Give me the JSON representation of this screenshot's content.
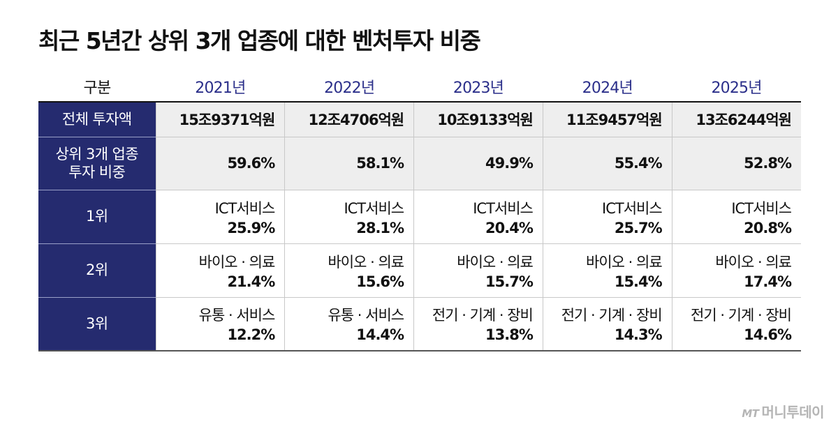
{
  "title": "최근 5년간 상위 3개 업종에 대한 벤처투자 비중",
  "chart_data": {
    "type": "table",
    "title": "최근 5년간 상위 3개 업종에 대한 벤처투자 비중",
    "header": {
      "label": "구분",
      "years": [
        "2021년",
        "2022년",
        "2023년",
        "2024년",
        "2025년"
      ]
    },
    "total_row": {
      "label": "전체 투자액",
      "values": [
        "15조9371억원",
        "12조4706억원",
        "10조9133억원",
        "11조9457억원",
        "13조6244억원"
      ]
    },
    "share_row": {
      "label_line1": "상위 3개 업종",
      "label_line2": "투자 비중",
      "values": [
        "59.6%",
        "58.1%",
        "49.9%",
        "55.4%",
        "52.8%"
      ]
    },
    "ranks": [
      {
        "label": "1위",
        "cells": [
          {
            "industry": "ICT서비스",
            "pct": "25.9%"
          },
          {
            "industry": "ICT서비스",
            "pct": "28.1%"
          },
          {
            "industry": "ICT서비스",
            "pct": "20.4%"
          },
          {
            "industry": "ICT서비스",
            "pct": "25.7%"
          },
          {
            "industry": "ICT서비스",
            "pct": "20.8%"
          }
        ]
      },
      {
        "label": "2위",
        "cells": [
          {
            "industry": "바이오 · 의료",
            "pct": "21.4%"
          },
          {
            "industry": "바이오 · 의료",
            "pct": "15.6%"
          },
          {
            "industry": "바이오 · 의료",
            "pct": "15.7%"
          },
          {
            "industry": "바이오 · 의료",
            "pct": "15.4%"
          },
          {
            "industry": "바이오 · 의료",
            "pct": "17.4%"
          }
        ]
      },
      {
        "label": "3위",
        "cells": [
          {
            "industry": "유통 · 서비스",
            "pct": "12.2%"
          },
          {
            "industry": "유통 · 서비스",
            "pct": "14.4%"
          },
          {
            "industry": "전기 · 기계 · 장비",
            "pct": "13.8%"
          },
          {
            "industry": "전기 · 기계 · 장비",
            "pct": "14.3%"
          },
          {
            "industry": "전기 · 기계 · 장비",
            "pct": "14.6%"
          }
        ]
      }
    ]
  },
  "logo": {
    "mark": "MT",
    "name": "머니투데이"
  },
  "colors": {
    "label_bg": "#252b6f",
    "year_text": "#2b2f8a",
    "shaded_bg": "#eeeeee"
  }
}
